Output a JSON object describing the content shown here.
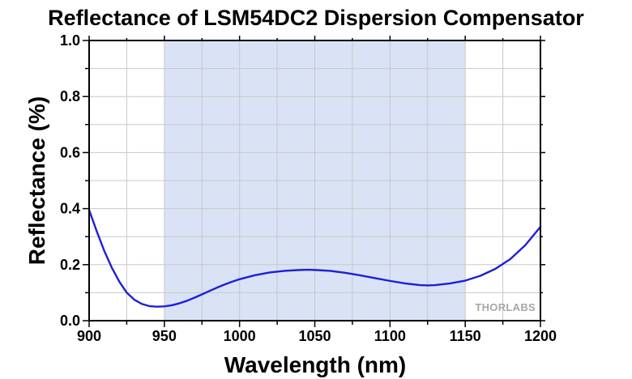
{
  "chart_data": {
    "type": "line",
    "title": "Reflectance of LSM54DC2 Dispersion Compensator",
    "xlabel": "Wavelength (nm)",
    "ylabel": "Reflectance (%)",
    "xlim": [
      900,
      1200
    ],
    "ylim": [
      0.0,
      1.0
    ],
    "xticks": [
      900,
      950,
      1000,
      1050,
      1100,
      1150,
      1200
    ],
    "xtick_labels": [
      "900",
      "950",
      "1000",
      "1050",
      "1100",
      "1150",
      "1200"
    ],
    "yticks": [
      0.0,
      0.2,
      0.4,
      0.6,
      0.8,
      1.0
    ],
    "ytick_labels": [
      "0.0",
      "0.2",
      "0.4",
      "0.6",
      "0.8",
      "1.0"
    ],
    "x_minor_step": 25,
    "y_minor_step": 0.1,
    "grid": true,
    "shaded_band": {
      "x_start": 950,
      "x_end": 1150
    },
    "series": [
      {
        "x": [
          900,
          905,
          910,
          915,
          920,
          925,
          930,
          935,
          940,
          945,
          950,
          955,
          960,
          965,
          970,
          975,
          980,
          985,
          990,
          995,
          1000,
          1010,
          1020,
          1030,
          1040,
          1045,
          1050,
          1060,
          1070,
          1080,
          1090,
          1100,
          1110,
          1120,
          1125,
          1130,
          1140,
          1150,
          1160,
          1170,
          1180,
          1190,
          1200
        ],
        "y": [
          0.395,
          0.32,
          0.25,
          0.19,
          0.14,
          0.1,
          0.075,
          0.06,
          0.052,
          0.05,
          0.051,
          0.055,
          0.062,
          0.071,
          0.082,
          0.094,
          0.106,
          0.118,
          0.129,
          0.139,
          0.148,
          0.162,
          0.172,
          0.178,
          0.181,
          0.182,
          0.181,
          0.178,
          0.171,
          0.162,
          0.152,
          0.142,
          0.133,
          0.127,
          0.126,
          0.127,
          0.133,
          0.143,
          0.16,
          0.185,
          0.22,
          0.27,
          0.335
        ]
      }
    ]
  },
  "logo_text": "THORLABS",
  "colors": {
    "curve": "#1f1fd6",
    "band": "#d9e3f5",
    "grid": "#c8c8c8"
  }
}
